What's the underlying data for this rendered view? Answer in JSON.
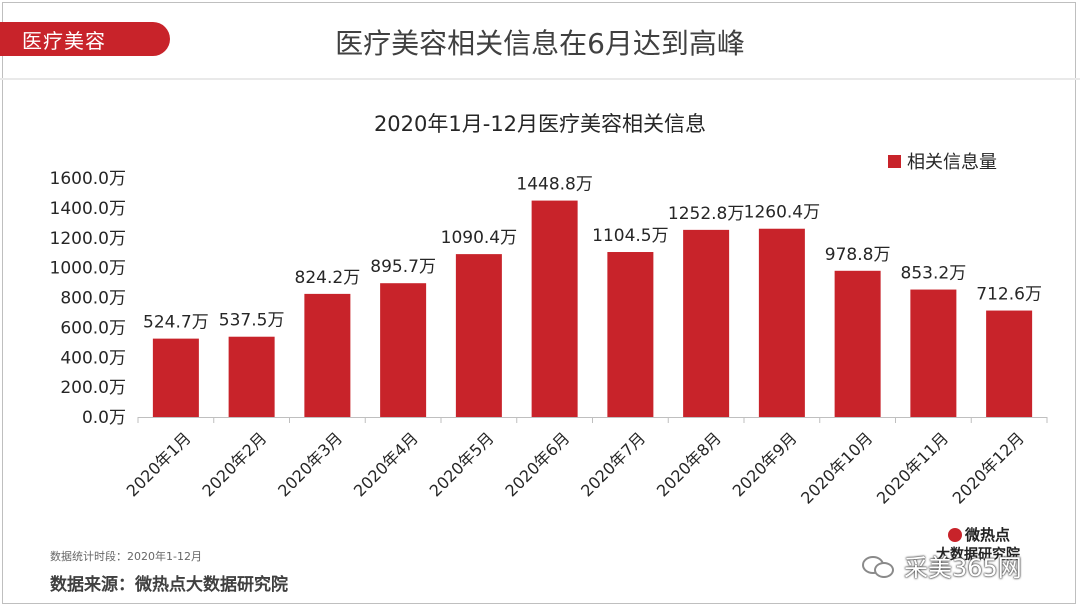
{
  "header": {
    "tag": "医疗美容",
    "title": "医疗美容相关信息在6月达到高峰"
  },
  "chart_data": {
    "type": "bar",
    "title": "2020年1月-12月医疗美容相关信息",
    "categories": [
      "2020年1月",
      "2020年2月",
      "2020年3月",
      "2020年4月",
      "2020年5月",
      "2020年6月",
      "2020年7月",
      "2020年8月",
      "2020年9月",
      "2020年10月",
      "2020年11月",
      "2020年12月"
    ],
    "series": [
      {
        "name": "相关信息量",
        "values": [
          524.7,
          537.5,
          824.2,
          895.7,
          1090.4,
          1448.8,
          1104.5,
          1252.8,
          1260.4,
          978.8,
          853.2,
          712.6
        ],
        "data_labels": [
          "524.7万",
          "537.5万",
          "824.2万",
          "895.7万",
          "1090.4万",
          "1448.8万",
          "1104.5万",
          "1252.8万",
          "1260.4万",
          "978.8万",
          "853.2万",
          "712.6万"
        ]
      }
    ],
    "yticks": [
      0,
      200,
      400,
      600,
      800,
      1000,
      1200,
      1400,
      1600
    ],
    "ytick_labels": [
      "0.0万",
      "200.0万",
      "400.0万",
      "600.0万",
      "800.0万",
      "1000.0万",
      "1200.0万",
      "1400.0万",
      "1600.0万"
    ],
    "ylim": [
      0,
      1600
    ],
    "xlabel": "",
    "ylabel": "",
    "legend": "top-right",
    "grid": false,
    "bar_color": "#c8232a"
  },
  "footer": {
    "note": "数据统计时段：2020年1-12月",
    "source": "数据来源：微热点大数据研究院"
  },
  "watermark": {
    "brand": "微热点",
    "brand_sub": "大数据研究院",
    "site": "采美365网"
  }
}
